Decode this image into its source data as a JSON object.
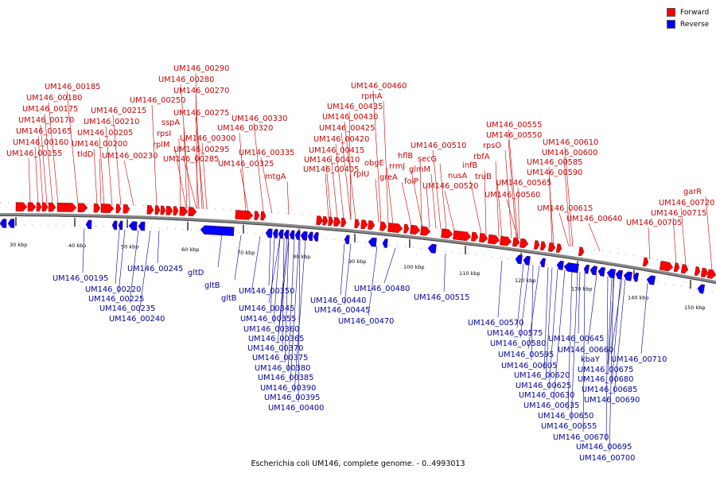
{
  "legend": {
    "forward_label": "Forward",
    "reverse_label": "Reverse",
    "forward_color": "#ff0000",
    "reverse_color": "#0000ff"
  },
  "caption": "Escherichia coli UM146, complete genome. - 0..4993013",
  "backbone_color": "#888888",
  "tick_labels": [
    "30 kbp",
    "40 kbp",
    "50 kbp",
    "60 kbp",
    "70 kbp",
    "80 kbp",
    "90 kbp",
    "100 kbp",
    "110 kbp",
    "120 kbp",
    "130 kbp",
    "140 kbp",
    "150 kbp"
  ],
  "forward_gene_labels": [
    "UM146_00155",
    "UM146_00160",
    "UM146_00165",
    "UM146_00170",
    "UM146_00175",
    "UM146_00180",
    "UM146_00185",
    "tldD",
    "UM146_00200",
    "UM146_00205",
    "UM146_00210",
    "UM146_00215",
    "UM146_00230",
    "rplM",
    "rpsI",
    "sspA",
    "UM146_00250",
    "UM146_00270",
    "UM146_00275",
    "UM146_00280",
    "UM146_00285",
    "UM146_00290",
    "UM146_00295",
    "UM146_00300",
    "UM146_00320",
    "UM146_00325",
    "UM146_00330",
    "UM146_00335",
    "mtgA",
    "UM146_00405",
    "UM146_00410",
    "UM146_00415",
    "UM146_00420",
    "UM146_00425",
    "UM146_00430",
    "UM146_00435",
    "rplU",
    "rpmA",
    "obgE",
    "UM146_00460",
    "greA",
    "rrmJ",
    "hflB",
    "folP",
    "glmM",
    "secG",
    "UM146_00510",
    "UM146_00520",
    "nusA",
    "infB",
    "rbfA",
    "truB",
    "rpsO",
    "UM146_00550",
    "UM146_00555",
    "UM146_00560",
    "UM146_00565",
    "UM146_00585",
    "UM146_00590",
    "UM146_00600",
    "UM146_00610",
    "UM146_00615",
    "UM146_00640",
    "UM146_00705",
    "UM146_00715",
    "UM146_00720",
    "garR"
  ],
  "reverse_gene_labels": [
    "UM146_00195",
    "UM146_00220",
    "UM146_00225",
    "UM146_00235",
    "UM146_00240",
    "UM146_00245",
    "gltD",
    "gltB",
    "gltB",
    "UM146_00345",
    "UM146_00350",
    "UM146_00355",
    "UM146_00360",
    "UM146_00365",
    "UM146_00370",
    "UM146_00375",
    "UM146_00380",
    "UM146_00385",
    "UM146_00390",
    "UM146_00395",
    "UM146_00400",
    "UM146_00440",
    "UM146_00445",
    "UM146_00470",
    "UM146_00480",
    "UM146_00515",
    "UM146_00570",
    "UM146_00575",
    "UM146_00580",
    "UM146_00595",
    "UM146_00605",
    "UM146_00620",
    "UM146_00625",
    "UM146_00630",
    "UM146_00635",
    "UM146_00645",
    "UM146_00650",
    "UM146_00655",
    "UM146_00660",
    "kbaY",
    "UM146_00670",
    "UM146_00675",
    "UM146_00680",
    "UM146_00685",
    "UM146_00690",
    "UM146_00695",
    "UM146_00700",
    "UM146_00710"
  ]
}
